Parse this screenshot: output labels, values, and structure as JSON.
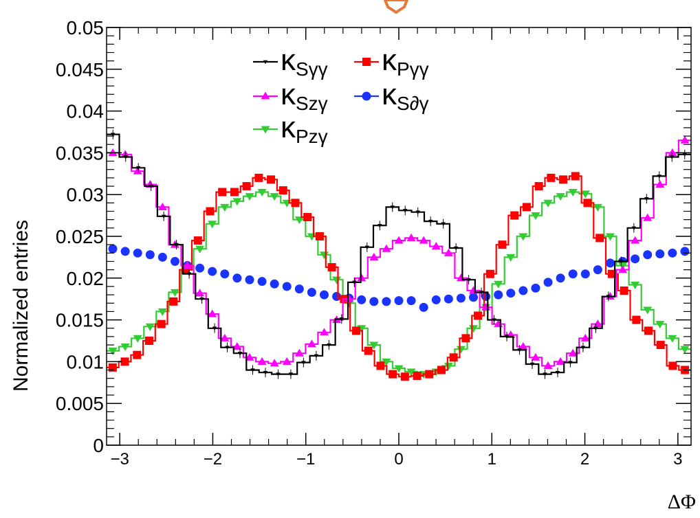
{
  "chart_data": {
    "type": "line",
    "title": "",
    "xlabel": "ΔΦ",
    "ylabel": "Normalized entries",
    "xlim": [
      -3.1416,
      3.1416
    ],
    "ylim": [
      0,
      0.05
    ],
    "x_ticks": [
      "−3",
      "−2",
      "−1",
      "0",
      "1",
      "2",
      "3"
    ],
    "y_ticks": [
      "0",
      "0.005",
      "0.01",
      "0.015",
      "0.02",
      "0.025",
      "0.03",
      "0.035",
      "0.04",
      "0.045",
      "0.05"
    ],
    "bins": 40,
    "grid": false,
    "legend_position": "top-center",
    "series": [
      {
        "name": "κSγγ",
        "base": "κ",
        "sub": "Sγγ",
        "color": "#000000",
        "marker": "triangle-down-small",
        "values": [
          0.0372,
          0.0345,
          0.0332,
          0.031,
          0.0274,
          0.024,
          0.0205,
          0.0175,
          0.014,
          0.0117,
          0.011,
          0.009,
          0.0087,
          0.0085,
          0.0085,
          0.0099,
          0.0107,
          0.012,
          0.0151,
          0.0195,
          0.0237,
          0.0263,
          0.0285,
          0.0281,
          0.0279,
          0.0268,
          0.0265,
          0.0236,
          0.0198,
          0.0183,
          0.015,
          0.013,
          0.0114,
          0.0097,
          0.0085,
          0.0087,
          0.0099,
          0.0117,
          0.014,
          0.0178,
          0.022,
          0.026,
          0.0295,
          0.0322,
          0.0345,
          0.0348
        ]
      },
      {
        "name": "κSzγ",
        "base": "κ",
        "sub": "Szγ",
        "color": "#ff00ff",
        "marker": "triangle-up",
        "values": [
          0.035,
          0.0348,
          0.0328,
          0.0312,
          0.0285,
          0.024,
          0.0215,
          0.0182,
          0.0157,
          0.0128,
          0.0118,
          0.0105,
          0.01,
          0.0098,
          0.01,
          0.011,
          0.0121,
          0.0135,
          0.015,
          0.0175,
          0.02,
          0.0225,
          0.0235,
          0.0245,
          0.0248,
          0.0245,
          0.0238,
          0.023,
          0.02,
          0.0185,
          0.0165,
          0.0145,
          0.0132,
          0.0118,
          0.0105,
          0.0095,
          0.01,
          0.011,
          0.0128,
          0.0145,
          0.0178,
          0.021,
          0.0245,
          0.0272,
          0.0312,
          0.035,
          0.0365
        ]
      },
      {
        "name": "κPzγ",
        "base": "κ",
        "sub": "Pzγ",
        "color": "#33cc33",
        "marker": "triangle-down",
        "values": [
          0.0113,
          0.0118,
          0.0128,
          0.0142,
          0.016,
          0.0183,
          0.021,
          0.0235,
          0.0265,
          0.0285,
          0.0292,
          0.0298,
          0.0303,
          0.0298,
          0.029,
          0.027,
          0.025,
          0.0228,
          0.0198,
          0.017,
          0.014,
          0.012,
          0.01,
          0.0092,
          0.0088,
          0.0085,
          0.0088,
          0.0095,
          0.0115,
          0.014,
          0.0165,
          0.0193,
          0.0225,
          0.025,
          0.0275,
          0.029,
          0.0298,
          0.0303,
          0.0301,
          0.0285,
          0.025,
          0.0215,
          0.0192,
          0.0162,
          0.0145,
          0.0128,
          0.0115
        ]
      },
      {
        "name": "κPγγ",
        "base": "κ",
        "sub": "Pγγ",
        "color": "#ff0000",
        "marker": "square",
        "values": [
          0.0093,
          0.01,
          0.0108,
          0.0125,
          0.0145,
          0.0172,
          0.021,
          0.0245,
          0.028,
          0.0303,
          0.0303,
          0.031,
          0.032,
          0.0318,
          0.0305,
          0.029,
          0.0273,
          0.025,
          0.0213,
          0.0175,
          0.0137,
          0.0113,
          0.0095,
          0.0085,
          0.0082,
          0.0083,
          0.0085,
          0.009,
          0.0105,
          0.0128,
          0.0155,
          0.0205,
          0.024,
          0.0275,
          0.0285,
          0.031,
          0.032,
          0.0318,
          0.0322,
          0.029,
          0.0248,
          0.0205,
          0.0185,
          0.015,
          0.0137,
          0.012,
          0.0095,
          0.009
        ]
      },
      {
        "name": "κS∂γ",
        "base": "κ",
        "sub": "S∂γ",
        "color": "#1a33ff",
        "marker": "circle",
        "values": [
          0.0235,
          0.0232,
          0.023,
          0.0228,
          0.0225,
          0.022,
          0.0215,
          0.0212,
          0.0208,
          0.0205,
          0.02,
          0.0198,
          0.0196,
          0.0193,
          0.019,
          0.0187,
          0.0183,
          0.018,
          0.0178,
          0.0176,
          0.0174,
          0.0172,
          0.0172,
          0.0173,
          0.0173,
          0.0165,
          0.0174,
          0.0175,
          0.0176,
          0.0177,
          0.0178,
          0.018,
          0.0182,
          0.0185,
          0.0188,
          0.0195,
          0.02,
          0.0205,
          0.0205,
          0.021,
          0.0218,
          0.022,
          0.0223,
          0.0228,
          0.0229,
          0.023,
          0.0232
        ]
      }
    ]
  },
  "colors": {
    "logo_mark": "#e8773a"
  }
}
